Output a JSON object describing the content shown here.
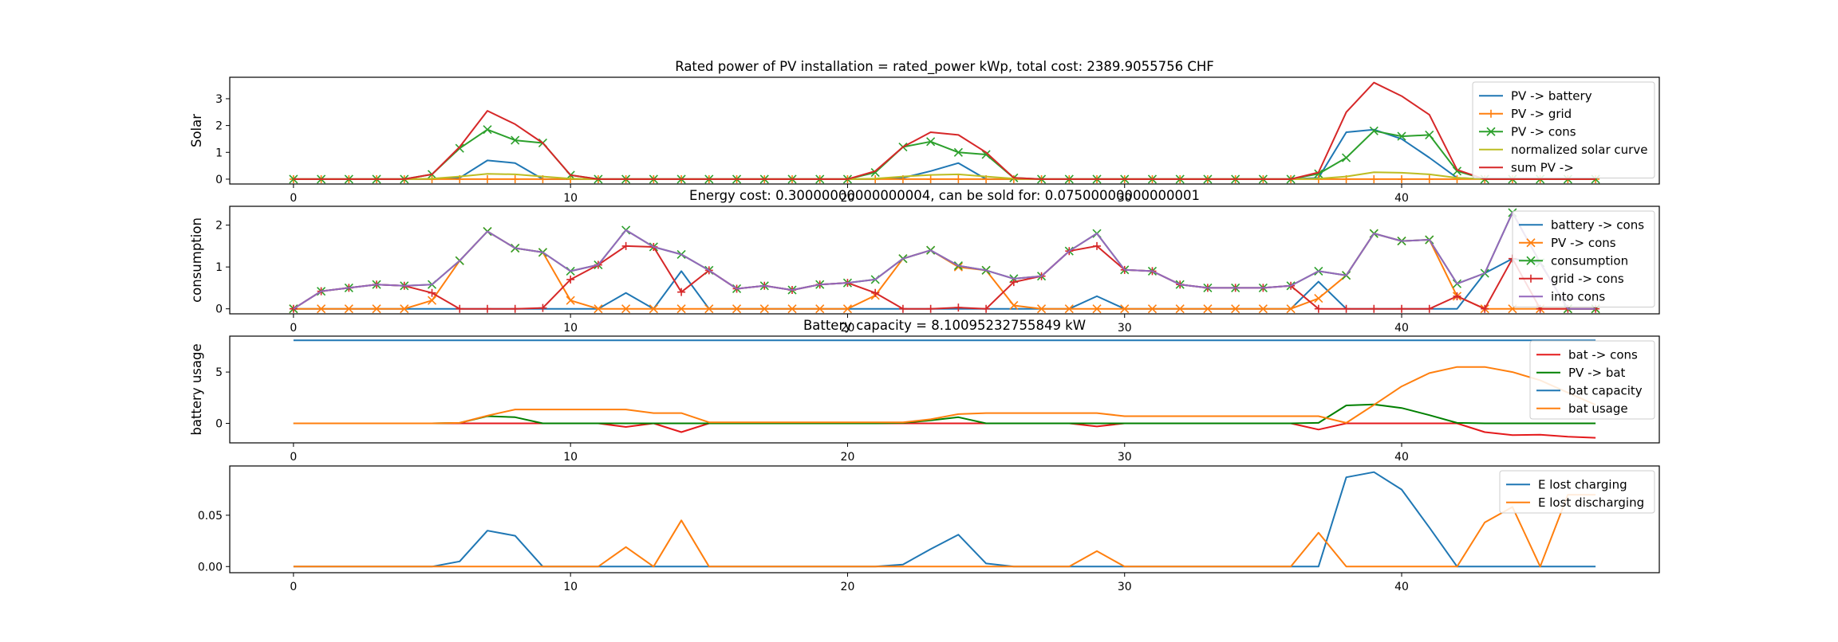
{
  "chart_data": [
    {
      "type": "line",
      "title": "Rated power of PV installation = rated_power kWp, total cost: 2389.9055756 CHF",
      "xlabel": "",
      "ylabel": "Solar",
      "xlim": [
        -2.3,
        49.3
      ],
      "ylim": [
        -0.18,
        3.8
      ],
      "xticks": [
        0,
        10,
        20,
        30,
        40
      ],
      "yticks": [
        0,
        1,
        2,
        3
      ],
      "legend_position": "upper-right",
      "series": [
        {
          "name": "PV -> battery",
          "color": "#1f77b4",
          "marker": "none",
          "values": [
            0,
            0,
            0,
            0,
            0,
            0,
            0.05,
            0.7,
            0.6,
            0,
            0,
            0,
            0,
            0,
            0,
            0,
            0,
            0,
            0,
            0,
            0,
            0,
            0.05,
            0.3,
            0.6,
            0,
            0,
            0,
            0,
            0,
            0,
            0,
            0,
            0,
            0,
            0,
            0,
            0.05,
            1.75,
            1.85,
            1.5,
            0.8,
            0.05,
            0,
            0,
            0,
            0,
            0
          ]
        },
        {
          "name": "PV -> grid",
          "color": "#ff7f0e",
          "marker": "plus",
          "values": [
            0,
            0,
            0,
            0,
            0,
            0,
            0,
            0,
            0,
            0,
            0,
            0,
            0,
            0,
            0,
            0,
            0,
            0,
            0,
            0,
            0,
            0,
            0,
            0,
            0,
            0,
            0,
            0,
            0,
            0,
            0,
            0,
            0,
            0,
            0,
            0,
            0,
            0,
            0,
            0,
            0,
            0,
            0,
            0,
            0,
            0,
            0,
            0
          ]
        },
        {
          "name": "PV -> cons",
          "color": "#2ca02c",
          "marker": "x",
          "values": [
            0,
            0,
            0,
            0,
            0,
            0.18,
            1.15,
            1.85,
            1.45,
            1.35,
            0.15,
            0,
            0,
            0,
            0,
            0,
            0,
            0,
            0,
            0,
            0,
            0.25,
            1.2,
            1.4,
            1.0,
            0.92,
            0.05,
            0,
            0,
            0,
            0,
            0,
            0,
            0,
            0,
            0,
            0,
            0.2,
            0.8,
            1.8,
            1.6,
            1.65,
            0.3,
            0,
            0,
            0,
            0,
            0
          ]
        },
        {
          "name": "normalized solar curve",
          "color": "#bcbd22",
          "marker": "none",
          "values": [
            0,
            0,
            0,
            0,
            0,
            0.02,
            0.1,
            0.2,
            0.18,
            0.1,
            0.02,
            0,
            0,
            0,
            0,
            0,
            0,
            0,
            0,
            0,
            0,
            0.02,
            0.1,
            0.16,
            0.18,
            0.1,
            0.02,
            0,
            0,
            0,
            0,
            0,
            0,
            0,
            0,
            0,
            0,
            0.02,
            0.1,
            0.26,
            0.24,
            0.18,
            0.05,
            0,
            0,
            0,
            0,
            0
          ]
        },
        {
          "name": "sum PV ->",
          "color": "#d62728",
          "marker": "none",
          "values": [
            0,
            0,
            0,
            0,
            0,
            0.18,
            1.2,
            2.55,
            2.05,
            1.35,
            0.15,
            0,
            0,
            0,
            0,
            0,
            0,
            0,
            0,
            0,
            0,
            0.3,
            1.2,
            1.75,
            1.65,
            1.0,
            0.05,
            0,
            0,
            0,
            0,
            0,
            0,
            0,
            0,
            0,
            0,
            0.25,
            2.5,
            3.6,
            3.1,
            2.4,
            0.35,
            0,
            0,
            0,
            0,
            0
          ]
        }
      ]
    },
    {
      "type": "line",
      "title": "Energy cost: 0.30000000000000004, can be sold for: 0.07500000000000001",
      "xlabel": "",
      "ylabel": "consumption",
      "xlim": [
        -2.3,
        49.3
      ],
      "ylim": [
        -0.12,
        2.45
      ],
      "xticks": [
        0,
        10,
        20,
        30,
        40
      ],
      "yticks": [
        0,
        1,
        2
      ],
      "legend_position": "upper-right",
      "series": [
        {
          "name": "battery -> cons",
          "color": "#1f77b4",
          "marker": "none",
          "values": [
            0,
            0,
            0,
            0,
            0,
            0,
            0,
            0,
            0,
            0,
            0,
            0,
            0.38,
            0,
            0.9,
            0,
            0,
            0,
            0,
            0,
            0,
            0,
            0,
            0,
            0,
            0,
            0,
            0,
            0,
            0.3,
            0,
            0,
            0,
            0,
            0,
            0,
            0,
            0.65,
            0,
            0,
            0,
            0,
            0,
            0.85,
            1.2,
            1.1,
            0,
            0
          ]
        },
        {
          "name": "PV -> cons",
          "color": "#ff7f0e",
          "marker": "x",
          "values": [
            0,
            0,
            0,
            0,
            0,
            0.2,
            1.15,
            1.85,
            1.45,
            1.35,
            0.2,
            0,
            0,
            0,
            0,
            0,
            0,
            0,
            0,
            0,
            0,
            0.32,
            1.2,
            1.4,
            1.0,
            0.92,
            0.08,
            0,
            0,
            0,
            0,
            0,
            0,
            0,
            0,
            0,
            0,
            0.25,
            0.8,
            1.8,
            1.62,
            1.65,
            0.3,
            0,
            0,
            0,
            0,
            0
          ]
        },
        {
          "name": "consumption",
          "color": "#2ca02c",
          "marker": "x",
          "values": [
            0,
            0.42,
            0.5,
            0.58,
            0.55,
            0.58,
            1.15,
            1.85,
            1.45,
            1.35,
            0.9,
            1.05,
            1.88,
            1.48,
            1.3,
            0.92,
            0.48,
            0.55,
            0.45,
            0.58,
            0.62,
            0.7,
            1.2,
            1.4,
            1.03,
            0.92,
            0.72,
            0.78,
            1.38,
            1.8,
            0.93,
            0.9,
            0.58,
            0.5,
            0.5,
            0.5,
            0.55,
            0.9,
            0.8,
            1.8,
            1.62,
            1.65,
            0.6,
            0.85,
            2.3,
            1.1,
            0,
            0
          ]
        },
        {
          "name": "grid -> cons",
          "color": "#d62728",
          "marker": "plus",
          "values": [
            0,
            0.42,
            0.5,
            0.58,
            0.55,
            0.38,
            0,
            0,
            0,
            0.02,
            0.7,
            1.05,
            1.5,
            1.48,
            0.4,
            0.92,
            0.48,
            0.55,
            0.45,
            0.58,
            0.62,
            0.38,
            0,
            0,
            0.03,
            0,
            0.64,
            0.78,
            1.38,
            1.5,
            0.93,
            0.9,
            0.58,
            0.5,
            0.5,
            0.5,
            0.55,
            0,
            0,
            0,
            0,
            0,
            0.3,
            0,
            1.2,
            0,
            0,
            0
          ]
        },
        {
          "name": "into cons",
          "color": "#9467bd",
          "marker": "none",
          "values": [
            0,
            0.42,
            0.5,
            0.58,
            0.55,
            0.58,
            1.15,
            1.85,
            1.45,
            1.35,
            0.9,
            1.05,
            1.88,
            1.48,
            1.3,
            0.92,
            0.48,
            0.55,
            0.45,
            0.58,
            0.62,
            0.7,
            1.2,
            1.4,
            1.03,
            0.92,
            0.72,
            0.78,
            1.38,
            1.8,
            0.93,
            0.9,
            0.58,
            0.5,
            0.5,
            0.5,
            0.55,
            0.9,
            0.8,
            1.8,
            1.62,
            1.65,
            0.6,
            0.85,
            2.3,
            1.1,
            0,
            0
          ]
        }
      ]
    },
    {
      "type": "line",
      "title": "Battery capacity = 8.10095232755849 kW",
      "xlabel": "",
      "ylabel": "battery usage",
      "xlim": [
        -2.3,
        49.3
      ],
      "ylim": [
        -1.9,
        8.5
      ],
      "xticks": [
        0,
        10,
        20,
        30,
        40
      ],
      "yticks": [
        0,
        5
      ],
      "legend_position": "upper-right",
      "series": [
        {
          "name": "bat -> cons",
          "color": "#e41a1c",
          "marker": "none",
          "values": [
            0,
            0,
            0,
            0,
            0,
            0,
            0,
            0,
            0,
            0,
            0,
            0,
            -0.35,
            0,
            -0.85,
            0,
            0,
            0,
            0,
            0,
            0,
            0,
            0,
            0,
            0,
            0,
            0,
            0,
            0,
            -0.3,
            0,
            0,
            0,
            0,
            0,
            0,
            0,
            -0.6,
            0,
            0,
            0,
            0,
            0,
            -0.85,
            -1.15,
            -1.1,
            -1.3,
            -1.4
          ]
        },
        {
          "name": "PV -> bat",
          "color": "#008000",
          "marker": "none",
          "values": [
            0,
            0,
            0,
            0,
            0,
            0,
            0.05,
            0.7,
            0.6,
            0,
            0,
            0,
            0,
            0,
            0,
            0,
            0,
            0,
            0,
            0,
            0,
            0,
            0.05,
            0.3,
            0.6,
            0,
            0,
            0,
            0,
            0,
            0,
            0,
            0,
            0,
            0,
            0,
            0,
            0.05,
            1.75,
            1.85,
            1.5,
            0.8,
            0.05,
            0,
            0,
            0,
            0,
            0
          ]
        },
        {
          "name": "bat capacity",
          "color": "#1f77b4",
          "marker": "none",
          "values": [
            8.1,
            8.1,
            8.1,
            8.1,
            8.1,
            8.1,
            8.1,
            8.1,
            8.1,
            8.1,
            8.1,
            8.1,
            8.1,
            8.1,
            8.1,
            8.1,
            8.1,
            8.1,
            8.1,
            8.1,
            8.1,
            8.1,
            8.1,
            8.1,
            8.1,
            8.1,
            8.1,
            8.1,
            8.1,
            8.1,
            8.1,
            8.1,
            8.1,
            8.1,
            8.1,
            8.1,
            8.1,
            8.1,
            8.1,
            8.1,
            8.1,
            8.1,
            8.1,
            8.1,
            8.1,
            8.1,
            8.1,
            8.1
          ]
        },
        {
          "name": "bat usage",
          "color": "#ff7f0e",
          "marker": "none",
          "values": [
            0,
            0,
            0,
            0,
            0,
            0,
            0.05,
            0.75,
            1.35,
            1.35,
            1.35,
            1.35,
            1.35,
            1.0,
            1.0,
            0.1,
            0.1,
            0.1,
            0.1,
            0.1,
            0.1,
            0.1,
            0.1,
            0.4,
            0.9,
            1.0,
            1.0,
            1.0,
            1.0,
            1.0,
            0.7,
            0.7,
            0.7,
            0.7,
            0.7,
            0.7,
            0.7,
            0.7,
            0.05,
            1.8,
            3.6,
            4.9,
            5.5,
            5.5,
            5.0,
            4.2,
            3.0,
            1.8
          ]
        }
      ]
    },
    {
      "type": "line",
      "title": "",
      "xlabel": "",
      "ylabel": "",
      "xlim": [
        -2.3,
        49.3
      ],
      "ylim": [
        -0.006,
        0.098
      ],
      "xticks": [
        0,
        10,
        20,
        30,
        40
      ],
      "yticks": [
        0,
        0.05
      ],
      "ytick_labels": [
        "0.00",
        "0.05"
      ],
      "legend_position": "upper-right",
      "series": [
        {
          "name": "E lost charging",
          "color": "#1f77b4",
          "marker": "none",
          "values": [
            0,
            0,
            0,
            0,
            0,
            0,
            0.005,
            0.035,
            0.03,
            0,
            0,
            0,
            0,
            0,
            0,
            0,
            0,
            0,
            0,
            0,
            0,
            0,
            0.002,
            0.017,
            0.031,
            0.003,
            0,
            0,
            0,
            0,
            0,
            0,
            0,
            0,
            0,
            0,
            0,
            0,
            0.087,
            0.092,
            0.075,
            0.038,
            0,
            0,
            0,
            0,
            0,
            0
          ]
        },
        {
          "name": "E lost discharging",
          "color": "#ff7f0e",
          "marker": "none",
          "values": [
            0,
            0,
            0,
            0,
            0,
            0,
            0,
            0,
            0,
            0,
            0,
            0,
            0.019,
            0,
            0.045,
            0,
            0,
            0,
            0,
            0,
            0,
            0,
            0,
            0,
            0,
            0,
            0,
            0,
            0,
            0.015,
            0,
            0,
            0,
            0,
            0,
            0,
            0,
            0.033,
            0,
            0,
            0,
            0,
            0,
            0.043,
            0.058,
            0,
            0.07,
            0.07
          ]
        }
      ]
    }
  ]
}
